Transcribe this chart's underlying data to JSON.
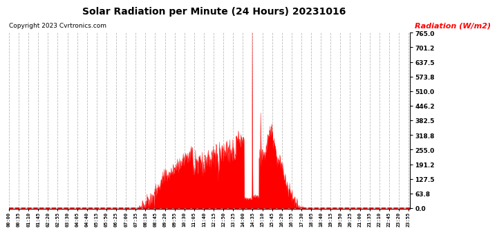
{
  "title": "Solar Radiation per Minute (24 Hours) 20231016",
  "copyright_text": "Copyright 2023 Cvrtronics.com",
  "ylabel": "Radiation (W/m2)",
  "ylabel_color": "#ff0000",
  "background_color": "#ffffff",
  "fill_color": "#ff0000",
  "line_color": "#ff0000",
  "yticks": [
    0.0,
    63.8,
    127.5,
    191.2,
    255.0,
    318.8,
    382.5,
    446.2,
    510.0,
    573.8,
    637.5,
    701.2,
    765.0
  ],
  "ymax": 765.0,
  "ymin": 0.0,
  "grid_color": "#bbbbbb",
  "dashed_zero_color": "#ff0000",
  "num_minutes": 1440,
  "sunrise_min": 468,
  "sunset_min": 1065,
  "spike_min": 874,
  "spike_val": 765.0,
  "second_spike_min": 904,
  "second_spike_val": 415.0,
  "third_peak_min": 970,
  "third_peak_val": 365.0
}
